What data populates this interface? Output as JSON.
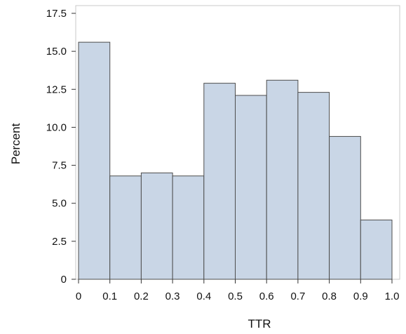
{
  "chart_data": {
    "type": "bar",
    "bins": [
      {
        "start": 0.0,
        "end": 0.1,
        "value": 15.6
      },
      {
        "start": 0.1,
        "end": 0.2,
        "value": 6.8
      },
      {
        "start": 0.2,
        "end": 0.3,
        "value": 7.0
      },
      {
        "start": 0.3,
        "end": 0.4,
        "value": 6.8
      },
      {
        "start": 0.4,
        "end": 0.5,
        "value": 12.9
      },
      {
        "start": 0.5,
        "end": 0.6,
        "value": 12.1
      },
      {
        "start": 0.6,
        "end": 0.7,
        "value": 13.1
      },
      {
        "start": 0.7,
        "end": 0.8,
        "value": 12.3
      },
      {
        "start": 0.8,
        "end": 0.9,
        "value": 9.4
      },
      {
        "start": 0.9,
        "end": 1.0,
        "value": 3.9
      }
    ],
    "title": "",
    "xlabel": "TTR",
    "ylabel": "Percent",
    "xlim": [
      0,
      1.0
    ],
    "ylim": [
      0,
      17.5
    ],
    "x_ticks": [
      "0",
      "0.1",
      "0.2",
      "0.3",
      "0.4",
      "0.5",
      "0.6",
      "0.7",
      "0.8",
      "0.9",
      "1.0"
    ],
    "y_ticks": [
      "0",
      "2.5",
      "5.0",
      "7.5",
      "10.0",
      "12.5",
      "15.0",
      "17.5"
    ],
    "grid": false,
    "bar_fill": "#c9d6e6",
    "bar_stroke": "#4d4d4d",
    "frame_color": "#c8c8c8"
  }
}
